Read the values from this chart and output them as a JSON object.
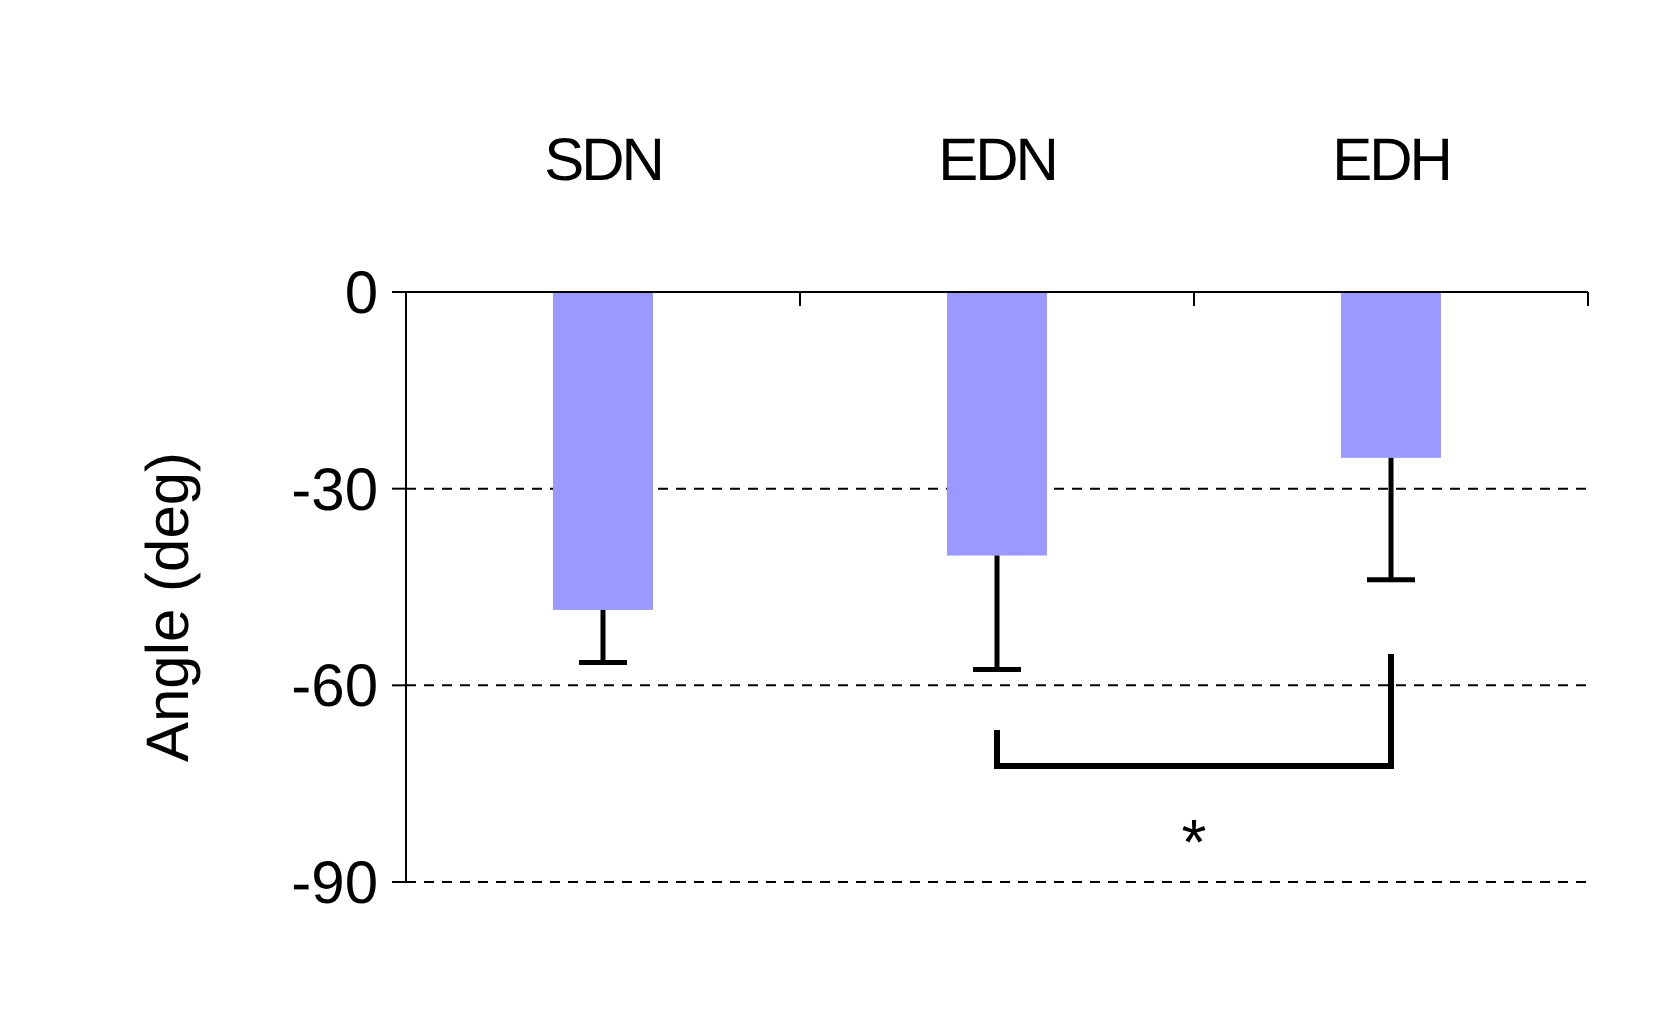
{
  "chart_data": {
    "type": "bar",
    "ylabel": "Angle (deg)",
    "categories": [
      "SDN",
      "EDN",
      "EDH"
    ],
    "values": [
      -48.5,
      -40.2,
      -25.3
    ],
    "errors": [
      [
        -56.5,
        -48.5
      ],
      [
        -57.6,
        -40.2
      ],
      [
        -43.9,
        -25.3
      ]
    ],
    "color": "#9999ff",
    "ylim": [
      -90,
      0
    ],
    "yticks": [
      -90,
      -60,
      -30,
      0
    ],
    "grid": "y",
    "annotations": [
      "*"
    ]
  }
}
